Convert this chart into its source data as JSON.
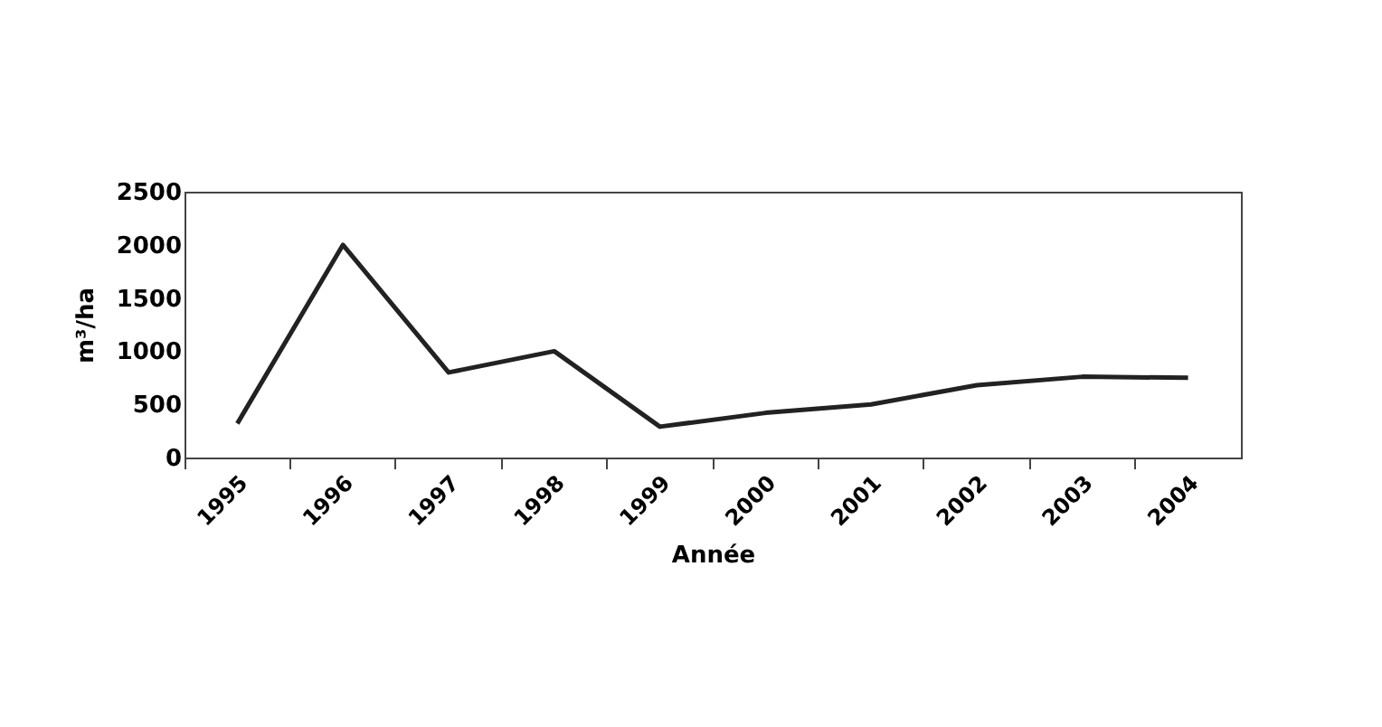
{
  "chart_data": {
    "type": "line",
    "xlabel": "Année",
    "ylabel": "m³/ha",
    "categories": [
      "1995",
      "1996",
      "1997",
      "1998",
      "1999",
      "2000",
      "2001",
      "2002",
      "2003",
      "2004"
    ],
    "series": [
      {
        "color": "#222222",
        "values": [
          320,
          2000,
          800,
          1000,
          290,
          420,
          500,
          680,
          760,
          750
        ]
      }
    ],
    "ylim": [
      0,
      2500
    ],
    "yticks": [
      0,
      500,
      1000,
      1500,
      2000,
      2500
    ],
    "grid": false,
    "legend": false,
    "marker": "none",
    "line_style": "solid"
  }
}
